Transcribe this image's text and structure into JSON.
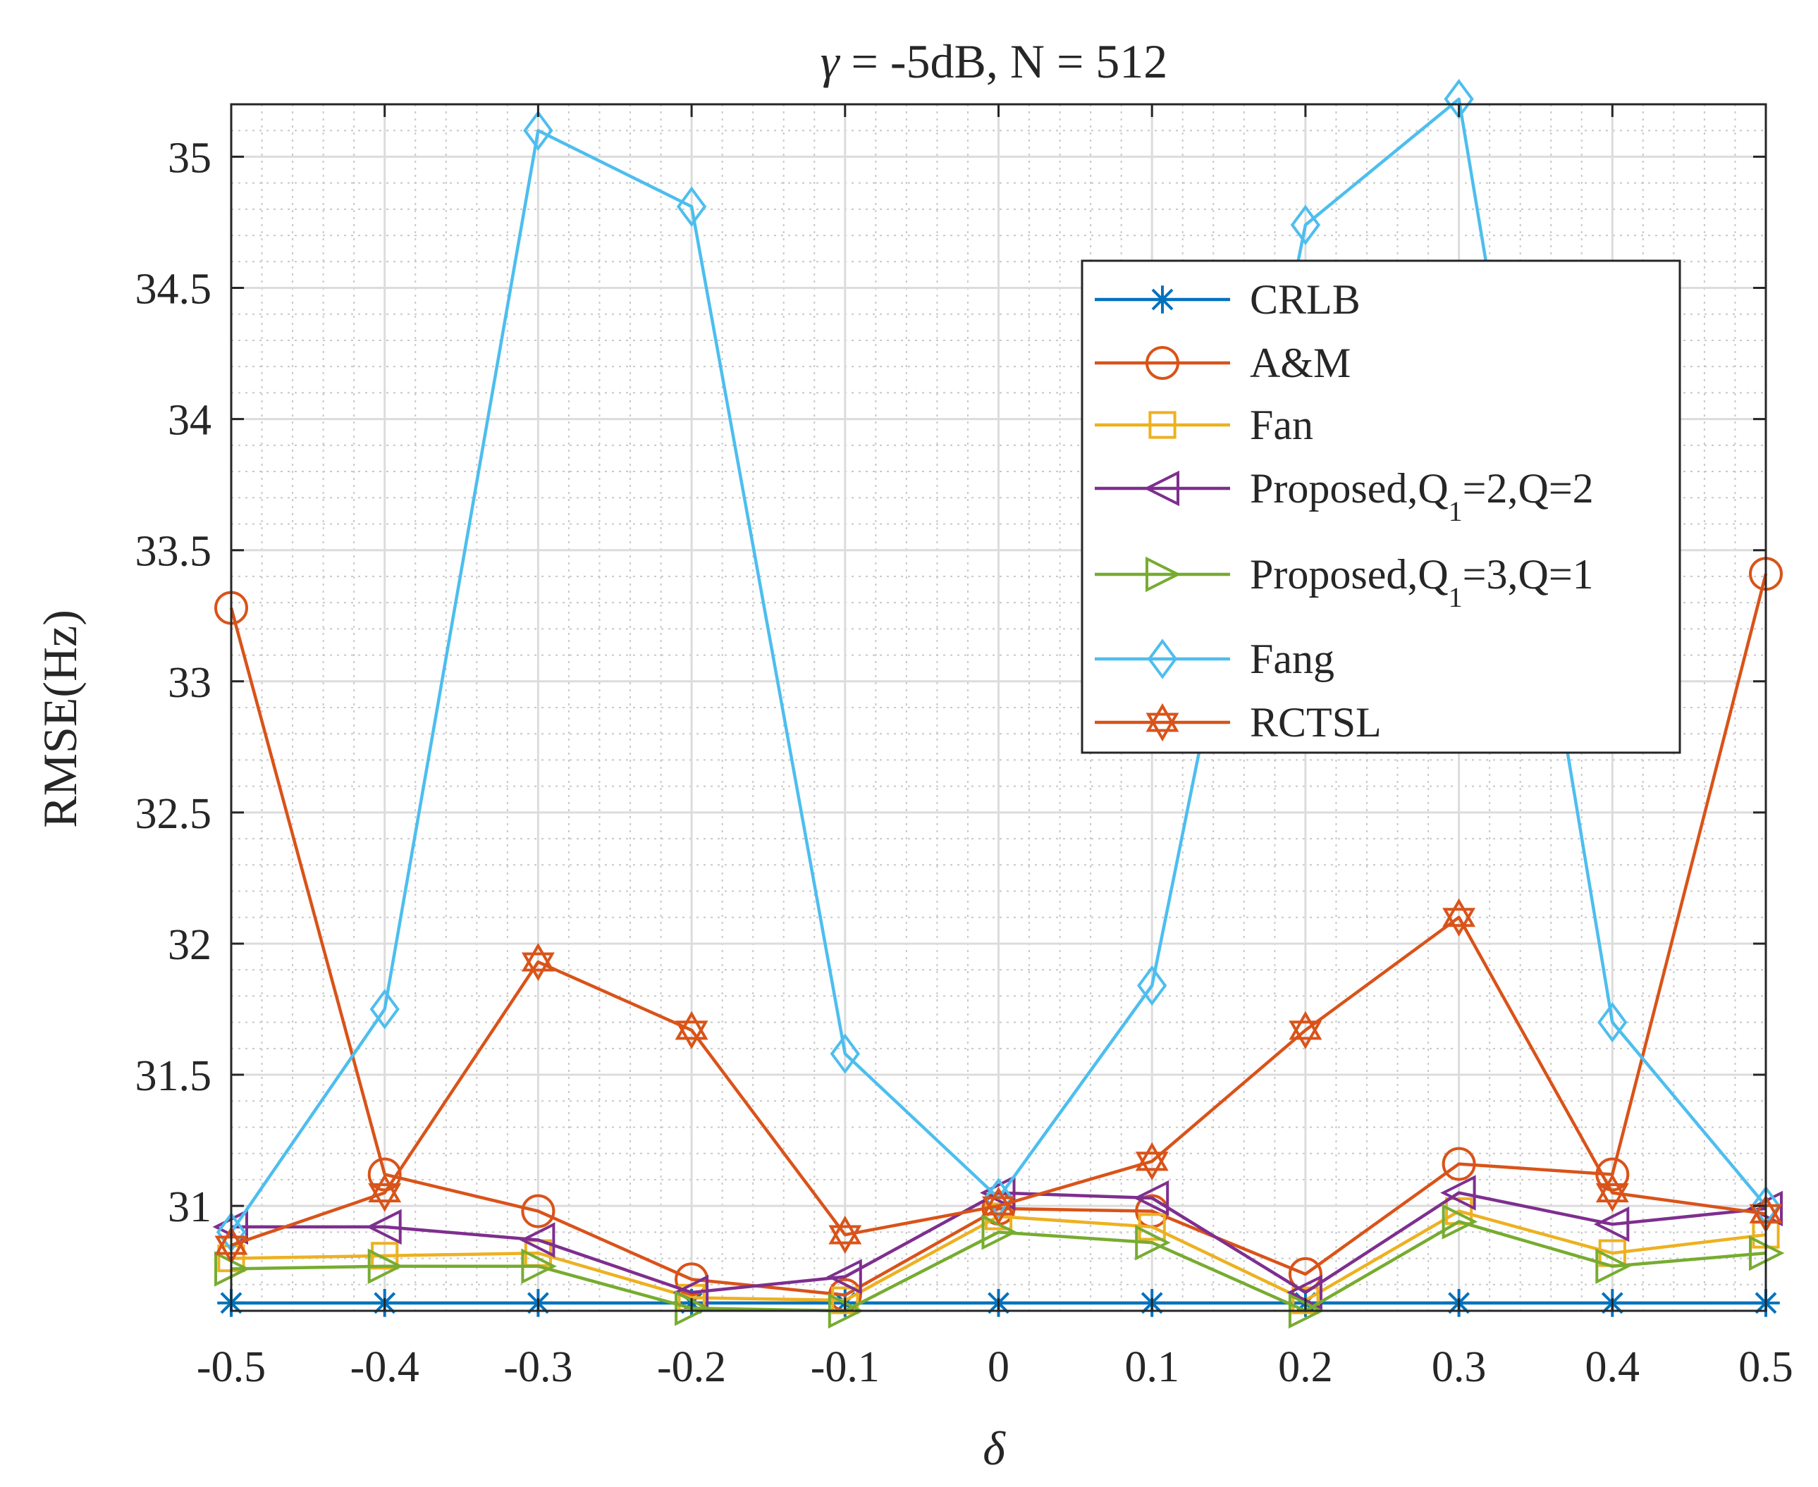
{
  "chart_data": {
    "type": "line",
    "title": "γ = -5dB, N = 512",
    "title_symbol": "γ",
    "title_rest": " = -5dB, N = 512",
    "xlabel": "δ",
    "ylabel": "RMSE(Hz)",
    "x": [
      -0.5,
      -0.4,
      -0.3,
      -0.2,
      -0.1,
      0,
      0.1,
      0.2,
      0.3,
      0.4,
      0.5
    ],
    "xlim": [
      -0.5,
      0.5
    ],
    "ylim": [
      30.6,
      35.2
    ],
    "xticks": [
      "-0.5",
      "-0.4",
      "-0.3",
      "-0.2",
      "-0.1",
      "0",
      "0.1",
      "0.2",
      "0.3",
      "0.4",
      "0.5"
    ],
    "yticks": [
      "31",
      "31.5",
      "32",
      "32.5",
      "33",
      "33.5",
      "34",
      "34.5",
      "35"
    ],
    "ytick_values": [
      31,
      31.5,
      32,
      32.5,
      33,
      33.5,
      34,
      34.5,
      35
    ],
    "grid": true,
    "minor_grid": true,
    "legend_position": "upper-right",
    "series": [
      {
        "name": "CRLB",
        "label": "CRLB",
        "color": "#0072BD",
        "marker": "star",
        "values": [
          30.63,
          30.63,
          30.63,
          30.63,
          30.63,
          30.63,
          30.63,
          30.63,
          30.63,
          30.63,
          30.63
        ]
      },
      {
        "name": "A&M",
        "label": "A&M",
        "color": "#D95319",
        "marker": "circle",
        "values": [
          33.28,
          31.12,
          30.98,
          30.72,
          30.66,
          30.99,
          30.98,
          30.74,
          31.16,
          31.12,
          33.41
        ]
      },
      {
        "name": "Fan",
        "label": "Fan",
        "color": "#EDB120",
        "marker": "square",
        "values": [
          30.8,
          30.81,
          30.82,
          30.65,
          30.64,
          30.96,
          30.92,
          30.64,
          30.98,
          30.82,
          30.89
        ]
      },
      {
        "name": "Proposed,Q1=2,Q=2",
        "label": "Proposed,Q",
        "label_sub": "1",
        "label_rest": "=2,Q=2",
        "color": "#7E2F8E",
        "marker": "triangle-left",
        "values": [
          30.92,
          30.92,
          30.87,
          30.67,
          30.73,
          31.05,
          31.03,
          30.67,
          31.05,
          30.93,
          30.99
        ]
      },
      {
        "name": "Proposed,Q1=3,Q=1",
        "label": "Proposed,Q",
        "label_sub": "1",
        "label_rest": "=3,Q=1",
        "color": "#77AC30",
        "marker": "triangle-right",
        "values": [
          30.76,
          30.77,
          30.77,
          30.61,
          30.6,
          30.9,
          30.86,
          30.6,
          30.94,
          30.77,
          30.82
        ]
      },
      {
        "name": "Fang",
        "label": "Fang",
        "color": "#4DBEEE",
        "marker": "diamond",
        "values": [
          30.9,
          31.75,
          35.1,
          34.81,
          31.58,
          31.03,
          31.84,
          34.74,
          35.22,
          31.7,
          31.0
        ]
      },
      {
        "name": "RCTSL",
        "label": "RCTSL",
        "color": "#D95319",
        "marker": "hexagram",
        "values": [
          30.85,
          31.05,
          31.93,
          31.67,
          30.89,
          31.0,
          31.17,
          31.67,
          32.1,
          31.05,
          30.97
        ]
      }
    ]
  }
}
